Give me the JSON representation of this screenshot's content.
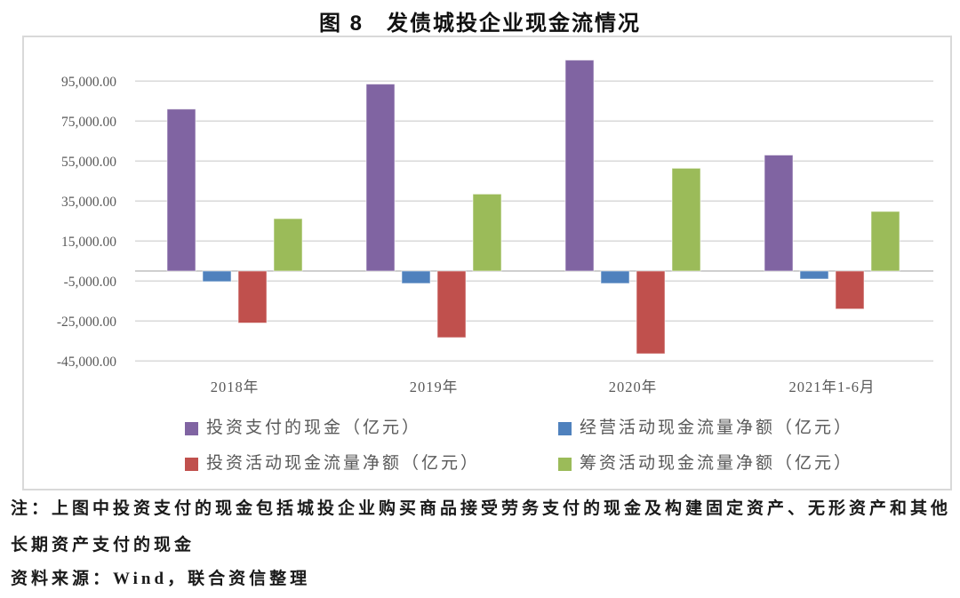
{
  "title": "图 8　发债城投企业现金流情况",
  "notes": {
    "line1": "注：上图中投资支付的现金包括城投企业购买商品接受劳务支付的现金及构建固定资产、无形资产和其他",
    "line2": "长期资产支付的现金",
    "source": "资料来源：Wind，联合资信整理"
  },
  "chart_data": {
    "type": "bar",
    "title": "图 8　发债城投企业现金流情况",
    "categories": [
      "2018年",
      "2019年",
      "2020年",
      "2021年1-6月"
    ],
    "series": [
      {
        "name": "投资支付的现金（亿元）",
        "color": "#8064A2",
        "values": [
          81000,
          93500,
          105500,
          58000
        ]
      },
      {
        "name": "经营活动现金流量净额（亿元）",
        "color": "#4F81BD",
        "values": [
          -5300,
          -6200,
          -6200,
          -4000
        ]
      },
      {
        "name": "投资活动现金流量净额（亿元）",
        "color": "#C0504D",
        "values": [
          -26000,
          -33300,
          -41400,
          -19000
        ]
      },
      {
        "name": "筹资活动现金流量净额（亿元）",
        "color": "#9BBB59",
        "values": [
          26200,
          38500,
          51400,
          29800
        ]
      }
    ],
    "y_axis": {
      "ticks": [
        95000,
        75000,
        55000,
        35000,
        15000,
        -5000,
        -25000,
        -45000
      ],
      "tick_format": "#,##0.00",
      "tick_labels": [
        "95,000.00",
        "75,000.00",
        "55,000.00",
        "35,000.00",
        "15,000.00",
        "-5,000.00",
        "-25,000.00",
        "-45,000.00"
      ]
    },
    "grid": true,
    "legend_position": "bottom",
    "colors": {
      "gridline": "#D9D9D9",
      "zero_line": "#BFBFBF",
      "axis_text": "#595959",
      "frame_border": "#D9D9D9"
    }
  }
}
